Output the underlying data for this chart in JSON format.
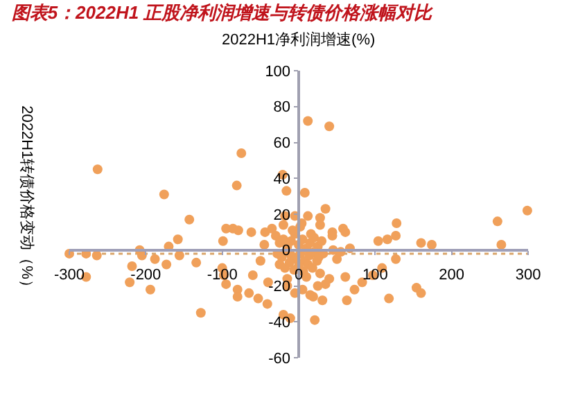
{
  "chart_data": {
    "type": "scatter",
    "title": "图表5：2022H1 正股净利润增速与转债价格涨幅对比",
    "xlabel": "2022H1净利润增速(%)",
    "ylabel": "2022H1转债价格变动（%）",
    "xlim": [
      -300,
      300
    ],
    "xticks": [
      -300,
      -200,
      -100,
      0,
      100,
      200,
      300
    ],
    "ylim": [
      -60,
      100
    ],
    "yticks": [
      -60,
      -40,
      -20,
      0,
      20,
      40,
      60,
      80,
      100
    ],
    "marker": "circle",
    "series": [
      {
        "color": "#f0a05a",
        "x": [
          -263,
          -176,
          -75,
          -81,
          -143,
          -21,
          -16,
          -300,
          -278,
          -264,
          -208,
          -205,
          -158,
          -170,
          -156,
          -95,
          -86,
          -79,
          -62,
          -44,
          -99,
          12,
          40,
          8,
          35,
          12,
          -5,
          -18,
          28,
          28,
          2,
          44,
          44,
          58,
          61,
          128,
          127,
          116,
          104,
          160,
          174,
          260,
          299,
          265,
          67,
          -278,
          -221,
          -194,
          -128,
          -173,
          -188,
          -218,
          -134,
          -95,
          -80,
          -65,
          -80,
          -53,
          -41,
          -20,
          -11,
          21,
          63,
          73,
          83,
          97,
          118,
          154,
          160,
          31,
          19,
          61,
          127,
          109,
          -100,
          -98,
          -30,
          -25,
          -20,
          -15,
          -10,
          -5,
          0,
          5,
          10,
          15,
          20,
          25,
          30,
          -28,
          -22,
          -16,
          -10,
          -4,
          2,
          8,
          14,
          20,
          26,
          32,
          -25,
          -18,
          -12,
          -6,
          0,
          6,
          12,
          18,
          24,
          -35,
          -20,
          -8,
          4,
          16,
          28,
          40,
          -40,
          -15,
          10,
          35,
          50,
          -50,
          45,
          -45,
          55,
          -60,
          5,
          -5,
          15,
          -15,
          25
        ],
        "values": [
          45,
          31,
          54,
          36,
          17,
          42,
          33,
          -2,
          -2,
          -3,
          0,
          -3,
          6,
          2,
          -3,
          12,
          12,
          11,
          10,
          10,
          5,
          72,
          69,
          32,
          23,
          19,
          19,
          19,
          18,
          14,
          13,
          10,
          8,
          12,
          10,
          15,
          8,
          6,
          5,
          4,
          3,
          16,
          22,
          3,
          1,
          -15,
          -18,
          -22,
          -35,
          -8,
          -5,
          -9,
          -7,
          -19,
          -22,
          -24,
          -26,
          -27,
          -30,
          -36,
          -38,
          -39,
          -28,
          -22,
          -18,
          -14,
          -27,
          -21,
          -24,
          -28,
          -26,
          -15,
          -5,
          -10,
          -10,
          -14,
          8,
          4,
          6,
          2,
          5,
          9,
          3,
          6,
          1,
          4,
          7,
          2,
          5,
          -2,
          -4,
          -1,
          -3,
          -5,
          -2,
          -6,
          -3,
          -1,
          -4,
          -2,
          -8,
          -10,
          -7,
          -11,
          -9,
          -12,
          -8,
          -10,
          -6,
          12,
          14,
          11,
          15,
          9,
          -13,
          -16,
          -18,
          -20,
          -15,
          -19,
          -5,
          -6,
          0,
          3,
          -1,
          -14,
          -22,
          -24,
          -25,
          -16,
          -20
        ]
      },
      {
        "type": "line",
        "color": "#d9a56a",
        "line_style": "dotted",
        "marker": "none",
        "x": [
          -290,
          300
        ],
        "values": [
          -2,
          -2
        ]
      }
    ]
  }
}
